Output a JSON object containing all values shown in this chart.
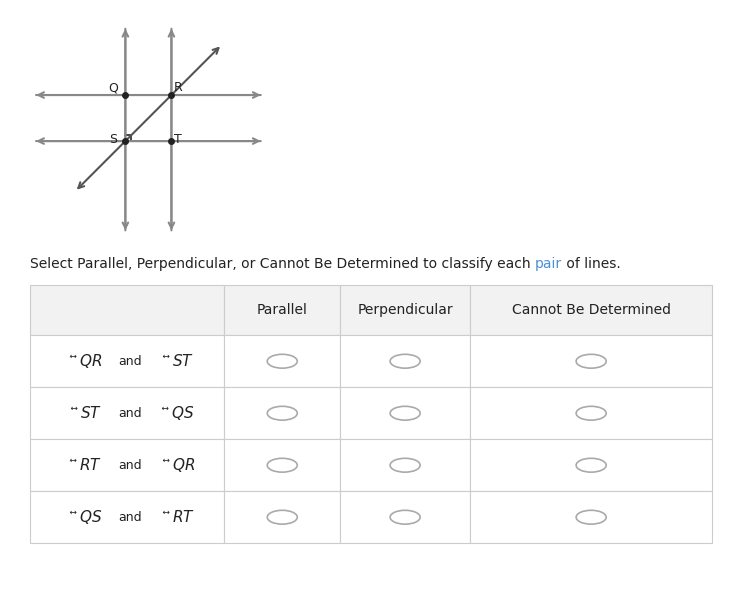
{
  "title_before": "Select Parallel, Perpendicular, or Cannot Be Determined to classify each ",
  "title_pair": "pair",
  "title_after": " of lines.",
  "title_pair_color": "#4a90d9",
  "col_headers": [
    "Parallel",
    "Perpendicular",
    "Cannot Be Determined"
  ],
  "row_labels": [
    [
      "QR",
      "ST"
    ],
    [
      "ST",
      "QS"
    ],
    [
      "RT",
      "QR"
    ],
    [
      "QS",
      "RT"
    ]
  ],
  "bg_color": "#ffffff",
  "table_border_color": "#cccccc",
  "header_bg": "#f2f2f2",
  "radio_color": "#aaaaaa",
  "text_color": "#222222",
  "diagram": {
    "line_color": "#888888",
    "point_color": "#222222",
    "diagonal_color": "#555555"
  }
}
